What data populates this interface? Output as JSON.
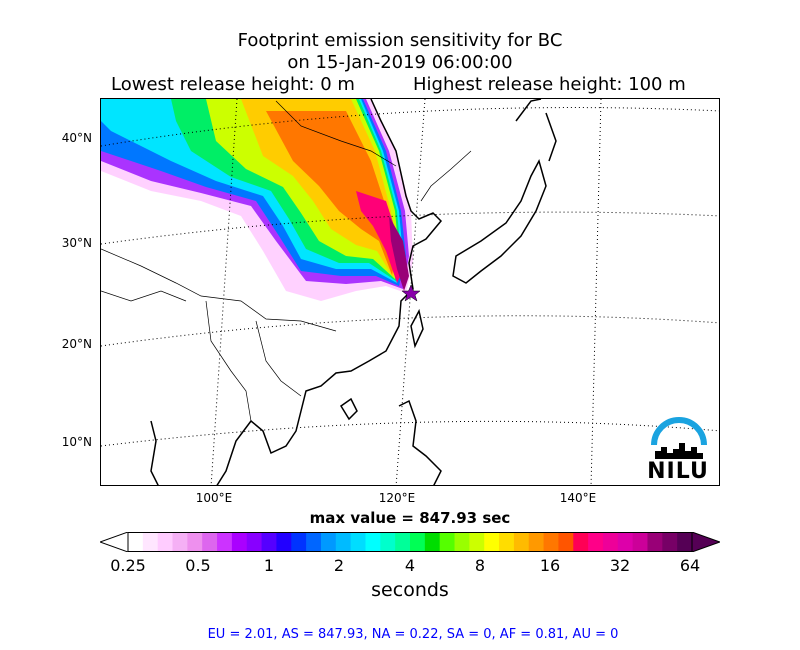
{
  "title": {
    "line1": "Footprint emission sensitivity for BC",
    "line2": "on 15-Jan-2019 06:00:00",
    "lowest": "Lowest release height: 0 m",
    "highest": "Highest release height: 100 m"
  },
  "map": {
    "lat_labels": [
      "40°N",
      "30°N",
      "20°N",
      "10°N"
    ],
    "lon_labels": [
      "100°E",
      "120°E",
      "140°E"
    ],
    "grid": "dotted",
    "release_marker": "star"
  },
  "max_value": "max value = 847.93 sec",
  "colorbar": {
    "ticks": [
      "0.25",
      "0.5",
      "1",
      "2",
      "4",
      "8",
      "16",
      "32",
      "64"
    ],
    "unit": "seconds",
    "colors": [
      "#ffffff",
      "#ffe6ff",
      "#ffccff",
      "#f5b0f5",
      "#ee90ee",
      "#dd66ee",
      "#cc33ff",
      "#aa00ff",
      "#8800ff",
      "#5500ff",
      "#2200ff",
      "#0033ff",
      "#0066ff",
      "#0099ff",
      "#00bbff",
      "#00ddff",
      "#00ffff",
      "#00ffcc",
      "#00ff99",
      "#00ff55",
      "#00dd00",
      "#55ff00",
      "#99ff00",
      "#ccff00",
      "#ffff00",
      "#ffdd00",
      "#ffbb00",
      "#ff9900",
      "#ff7700",
      "#ff5500",
      "#ff0055",
      "#ff0088",
      "#ee0099",
      "#dd00aa",
      "#cc0099",
      "#990077",
      "#770066",
      "#550055"
    ]
  },
  "footer": "EU = 2.01,  AS = 847.93,  NA = 0.22,  SA = 0,  AF = 0.81,  AU = 0",
  "logo": {
    "text": "NILU",
    "color": "#1aa3e0"
  }
}
